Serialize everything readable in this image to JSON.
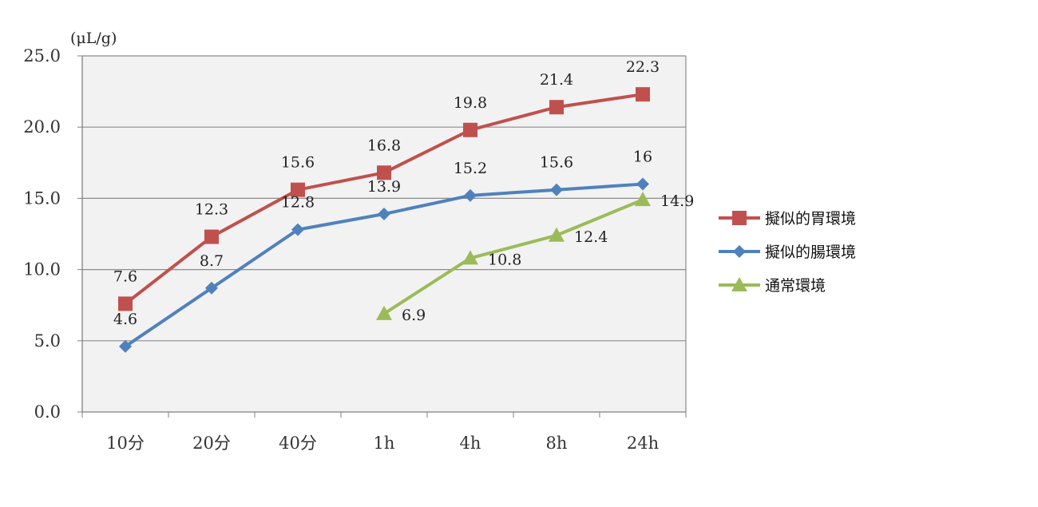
{
  "chart_data": {
    "type": "line",
    "unit": "(μL/g)",
    "categories": [
      "10分",
      "20分",
      "40分",
      "1h",
      "4h",
      "8h",
      "24h"
    ],
    "ylim": [
      0,
      25
    ],
    "yticks": [
      "0.0",
      "5.0",
      "10.0",
      "15.0",
      "20.0",
      "25.0"
    ],
    "grid": true,
    "legend_position": "right",
    "series": [
      {
        "name": "擬似的胃環境",
        "color": "#c0504d",
        "marker": "square",
        "values": [
          7.6,
          12.3,
          15.6,
          16.8,
          19.8,
          21.4,
          22.3
        ],
        "labels": [
          "7.6",
          "12.3",
          "15.6",
          "16.8",
          "19.8",
          "21.4",
          "22.3"
        ]
      },
      {
        "name": "擬似的腸環境",
        "color": "#4f81bd",
        "marker": "diamond",
        "values": [
          4.6,
          8.7,
          12.8,
          13.9,
          15.2,
          15.6,
          16
        ],
        "labels": [
          "4.6",
          "8.7",
          "12.8",
          "13.9",
          "15.2",
          "15.6",
          "16"
        ]
      },
      {
        "name": "通常環境",
        "color": "#9bbb59",
        "marker": "triangle",
        "values": [
          null,
          null,
          null,
          6.9,
          10.8,
          12.4,
          14.9
        ],
        "labels": [
          null,
          null,
          null,
          "6.9",
          "10.8",
          "12.4",
          "14.9"
        ]
      }
    ]
  }
}
